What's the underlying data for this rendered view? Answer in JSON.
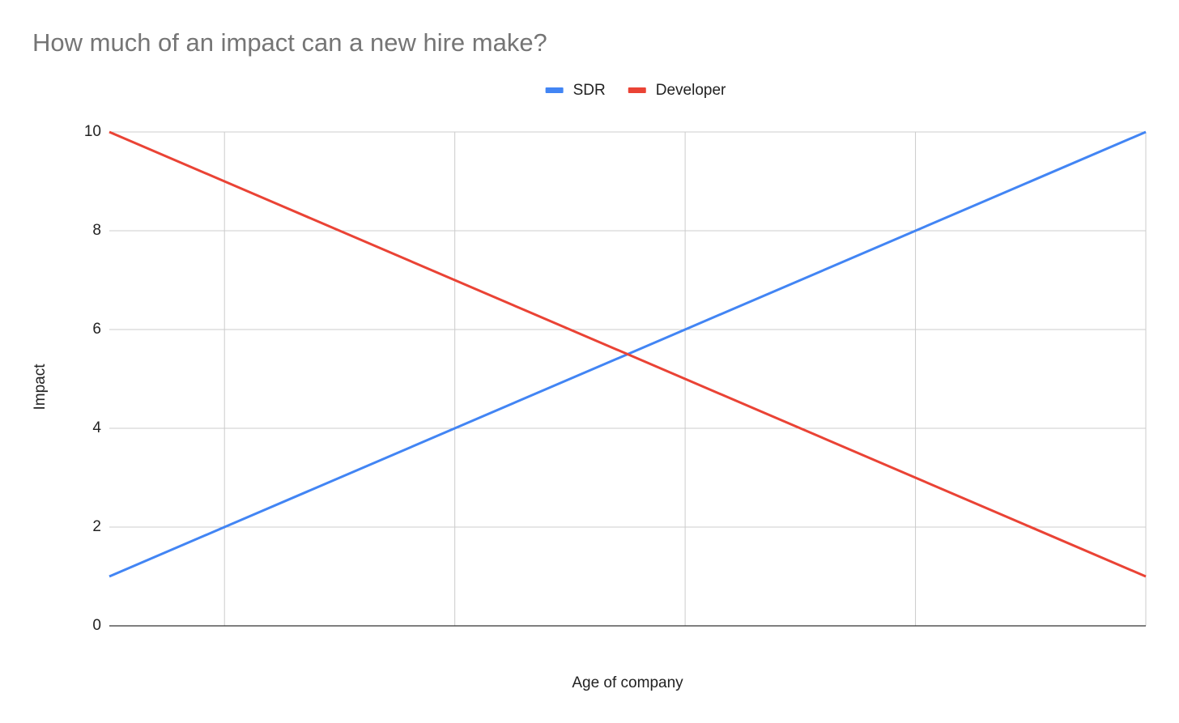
{
  "chart_data": {
    "type": "line",
    "title": "How much of an impact can a new hire make?",
    "x_label": "Age of company",
    "y_label": "Impact",
    "x": [
      0.5,
      1,
      2,
      3,
      4,
      5
    ],
    "xlim": [
      0.5,
      5
    ],
    "xticks": [
      1,
      2,
      3,
      4,
      5
    ],
    "ylim": [
      0,
      10
    ],
    "yticks": [
      0,
      2,
      4,
      6,
      8,
      10
    ],
    "grid": true,
    "legend": "top",
    "series": [
      {
        "name": "SDR",
        "color": "#4285f4",
        "values": [
          1,
          2,
          4,
          6,
          8,
          10
        ]
      },
      {
        "name": "Developer",
        "color": "#ea4335",
        "values": [
          10,
          9,
          7,
          5,
          3,
          1
        ]
      }
    ]
  }
}
